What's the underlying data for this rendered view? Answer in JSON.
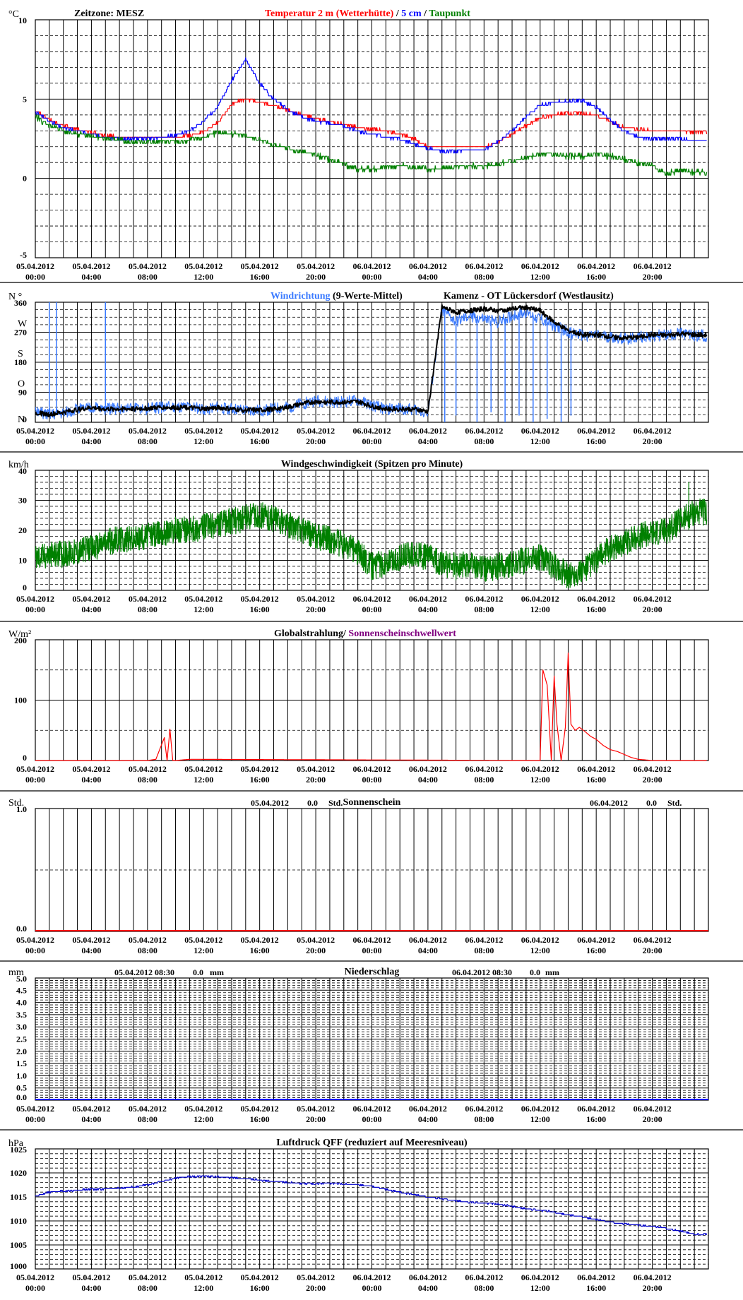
{
  "x_ticks": [
    {
      "date": "05.04.2012",
      "time": "00:00"
    },
    {
      "date": "05.04.2012",
      "time": "04:00"
    },
    {
      "date": "05.04.2012",
      "time": "08:00"
    },
    {
      "date": "05.04.2012",
      "time": "12:00"
    },
    {
      "date": "05.04.2012",
      "time": "16:00"
    },
    {
      "date": "05.04.2012",
      "time": "20:00"
    },
    {
      "date": "06.04.2012",
      "time": "00:00"
    },
    {
      "date": "06.04.2012",
      "time": "04:00"
    },
    {
      "date": "06.04.2012",
      "time": "08:00"
    },
    {
      "date": "06.04.2012",
      "time": "12:00"
    },
    {
      "date": "06.04.2012",
      "time": "16:00"
    },
    {
      "date": "06.04.2012",
      "time": "20:00"
    }
  ],
  "colors": {
    "red": "#ff0000",
    "blue": "#0000ff",
    "green": "#008000",
    "lightblue": "#3a7aff",
    "black": "#000000",
    "purple": "#800080",
    "navy": "#0000cc"
  },
  "chart_data": [
    {
      "type": "line",
      "id": "temperature",
      "unit": "°C",
      "timezone_label": "Zeitzone: MESZ",
      "title_parts": [
        {
          "text": "Temperatur 2 m (Wetterhütte)",
          "color": "#ff0000"
        },
        {
          "text": "  /  ",
          "color": "#000000"
        },
        {
          "text": "5 cm",
          "color": "#0000ff"
        },
        {
          "text": " / ",
          "color": "#000000"
        },
        {
          "text": "Taupunkt",
          "color": "#008000"
        }
      ],
      "ylim": [
        -5,
        10
      ],
      "y_ticks": [
        -5,
        0,
        5,
        10
      ],
      "x_hours": [
        0,
        1,
        2,
        3,
        4,
        5,
        6,
        7,
        8,
        9,
        10,
        11,
        12,
        13,
        14,
        15,
        16,
        17,
        18,
        19,
        20,
        21,
        22,
        23,
        24,
        25,
        26,
        27,
        28,
        29,
        30,
        31,
        32,
        33,
        34,
        35,
        36,
        37,
        38,
        39,
        40,
        41,
        42,
        43,
        44,
        45,
        46,
        47
      ],
      "series": [
        {
          "name": "Temperatur 2 m (Wetterhütte)",
          "color": "#ff0000",
          "values": [
            4.3,
            3.7,
            3.3,
            3.1,
            2.9,
            2.7,
            2.6,
            2.6,
            2.6,
            2.6,
            2.6,
            2.7,
            2.9,
            3.5,
            4.7,
            5.0,
            4.8,
            4.6,
            4.3,
            4.0,
            3.8,
            3.6,
            3.4,
            3.2,
            3.1,
            3.0,
            2.8,
            2.5,
            2.0,
            2.0,
            2.0,
            2.0,
            2.0,
            2.3,
            2.8,
            3.3,
            3.8,
            4.0,
            4.1,
            4.1,
            4.0,
            3.6,
            3.2,
            3.1,
            3.0,
            3.0,
            3.0,
            2.9
          ]
        },
        {
          "name": "5 cm",
          "color": "#0000ff",
          "values": [
            4.2,
            3.6,
            3.2,
            3.0,
            2.8,
            2.6,
            2.5,
            2.5,
            2.5,
            2.6,
            2.7,
            3.0,
            3.6,
            4.5,
            6.2,
            7.5,
            6.0,
            5.0,
            4.3,
            3.9,
            3.6,
            3.5,
            3.3,
            3.0,
            2.8,
            2.6,
            2.5,
            2.2,
            1.9,
            1.7,
            1.7,
            1.8,
            1.8,
            2.3,
            3.0,
            3.9,
            4.6,
            4.8,
            4.9,
            4.9,
            4.5,
            3.7,
            3.0,
            2.6,
            2.5,
            2.5,
            2.5,
            2.4
          ]
        },
        {
          "name": "Taupunkt",
          "color": "#008000",
          "values": [
            3.9,
            3.3,
            3.0,
            2.8,
            2.7,
            2.5,
            2.4,
            2.3,
            2.3,
            2.3,
            2.3,
            2.4,
            2.6,
            2.9,
            2.8,
            2.7,
            2.4,
            2.1,
            1.9,
            1.7,
            1.5,
            1.2,
            0.9,
            0.6,
            0.6,
            0.7,
            0.8,
            0.7,
            0.6,
            0.6,
            0.7,
            0.8,
            0.8,
            0.9,
            1.1,
            1.3,
            1.5,
            1.5,
            1.4,
            1.4,
            1.5,
            1.4,
            1.2,
            1.0,
            0.8,
            0.3,
            0.5,
            0.4
          ]
        }
      ]
    },
    {
      "type": "line",
      "id": "wind_direction",
      "unit": "N  °",
      "title_parts": [
        {
          "text": "Windrichtung",
          "color": "#3a7aff"
        },
        {
          "text": " (9-Werte-Mittel)",
          "color": "#000000"
        }
      ],
      "station": "Kamenz - OT Lückersdorf (Westlausitz)",
      "ylim": [
        0,
        360
      ],
      "y_ticks": [
        0,
        90,
        180,
        270,
        360
      ],
      "compass": [
        {
          "label": "N",
          "value": 0
        },
        {
          "label": "O",
          "value": 90
        },
        {
          "label": "S",
          "value": 180
        },
        {
          "label": "W",
          "value": 270
        },
        {
          "label": "N",
          "value": 360
        }
      ],
      "x_hours": [
        0,
        1,
        2,
        3,
        4,
        5,
        6,
        7,
        8,
        9,
        10,
        11,
        12,
        13,
        14,
        15,
        16,
        17,
        18,
        19,
        20,
        21,
        22,
        23,
        24,
        25,
        26,
        27,
        28,
        29,
        30,
        31,
        32,
        33,
        34,
        35,
        36,
        37,
        38,
        39,
        40,
        41,
        42,
        43,
        44,
        45,
        46,
        47
      ],
      "series": [
        {
          "name": "Windrichtung",
          "color": "#3a7aff",
          "values": [
            30,
            25,
            30,
            40,
            45,
            40,
            40,
            40,
            40,
            45,
            45,
            45,
            40,
            45,
            40,
            35,
            35,
            40,
            45,
            55,
            65,
            60,
            60,
            65,
            50,
            40,
            40,
            40,
            30,
            340,
            300,
            320,
            310,
            300,
            320,
            330,
            310,
            290,
            270,
            260,
            260,
            255,
            250,
            255,
            260,
            260,
            265,
            260
          ]
        },
        {
          "name": "9-Werte-Mittel",
          "color": "#000000",
          "values": [
            28,
            24,
            30,
            38,
            44,
            40,
            40,
            40,
            42,
            45,
            44,
            44,
            40,
            44,
            40,
            36,
            36,
            40,
            45,
            55,
            62,
            60,
            60,
            62,
            48,
            40,
            40,
            40,
            32,
            345,
            330,
            335,
            340,
            335,
            340,
            345,
            335,
            300,
            275,
            262,
            262,
            256,
            252,
            256,
            262,
            260,
            265,
            262
          ]
        }
      ],
      "spikes": [
        {
          "x": 1.0,
          "to": 360
        },
        {
          "x": 1.5,
          "to": 360
        },
        {
          "x": 5.0,
          "to": 360
        },
        {
          "x": 29.2,
          "to": 0
        },
        {
          "x": 30.0,
          "to": 20
        },
        {
          "x": 31.5,
          "to": 0
        },
        {
          "x": 32.5,
          "to": 30
        },
        {
          "x": 33.5,
          "to": 0
        },
        {
          "x": 34.5,
          "to": 20
        },
        {
          "x": 35.5,
          "to": 0
        },
        {
          "x": 36.5,
          "to": 10
        },
        {
          "x": 37.5,
          "to": 0
        },
        {
          "x": 38.2,
          "to": 20
        }
      ]
    },
    {
      "type": "line",
      "id": "wind_speed",
      "unit": "km/h",
      "title": "Windgeschwindigkeit (Spitzen pro Minute)",
      "ylim": [
        0,
        40
      ],
      "y_ticks": [
        0,
        10,
        20,
        30,
        40
      ],
      "x_hours": [
        0,
        1,
        2,
        3,
        4,
        5,
        6,
        7,
        8,
        9,
        10,
        11,
        12,
        13,
        14,
        15,
        16,
        17,
        18,
        19,
        20,
        21,
        22,
        23,
        24,
        25,
        26,
        27,
        28,
        29,
        30,
        31,
        32,
        33,
        34,
        35,
        36,
        37,
        38,
        39,
        40,
        41,
        42,
        43,
        44,
        45,
        46,
        47
      ],
      "series": [
        {
          "name": "Windgeschwindigkeit",
          "color": "#008000",
          "values": [
            11,
            12,
            12,
            13,
            14,
            16,
            17,
            17,
            18,
            19,
            20,
            20,
            21,
            22,
            23,
            24,
            25,
            24,
            22,
            20,
            18,
            17,
            15,
            13,
            8,
            9,
            11,
            12,
            11,
            9,
            8,
            9,
            7,
            8,
            9,
            10,
            11,
            8,
            5,
            6,
            10,
            14,
            16,
            18,
            19,
            20,
            23,
            26
          ]
        }
      ],
      "peak": {
        "x": 46.6,
        "value": 36
      }
    },
    {
      "type": "line",
      "id": "global_radiation",
      "unit": "W/m²",
      "title_parts": [
        {
          "text": "Globalstrahlung/ ",
          "color": "#000000"
        },
        {
          "text": "Sonnenscheinschwellwert",
          "color": "#800080"
        }
      ],
      "ylim": [
        0,
        200
      ],
      "y_ticks": [
        0,
        100,
        200
      ],
      "x_hours": [
        0,
        8,
        8.6,
        9.2,
        9.4,
        9.6,
        9.8,
        10,
        11,
        36,
        36.2,
        36.5,
        36.8,
        37.0,
        37.2,
        37.5,
        37.8,
        38.0,
        38.2,
        38.5,
        38.8,
        39.2,
        39.6,
        40.0,
        40.5,
        41.0,
        41.5,
        42.0,
        42.5,
        43.0,
        44.0,
        48
      ],
      "series": [
        {
          "name": "Globalstrahlung",
          "color": "#ff0000",
          "values": [
            0,
            0,
            2,
            38,
            0,
            52,
            0,
            0,
            2,
            0,
            150,
            125,
            0,
            140,
            60,
            0,
            55,
            178,
            60,
            50,
            55,
            48,
            40,
            35,
            25,
            18,
            15,
            10,
            5,
            2,
            0,
            0
          ]
        }
      ]
    },
    {
      "type": "bar",
      "id": "sunshine",
      "unit": "Std.",
      "title": "Sonnenschein",
      "summaries": [
        {
          "date": "05.04.2012",
          "value": "0.0",
          "unit": "Std."
        },
        {
          "date": "06.04.2012",
          "value": "0.0",
          "unit": "Std."
        }
      ],
      "ylim": [
        0,
        1
      ],
      "y_ticks": [
        "0.0",
        "1.0"
      ],
      "series": [
        {
          "name": "Sonnenschein",
          "color": "#ff0000",
          "values": [
            0
          ]
        }
      ]
    },
    {
      "type": "bar",
      "id": "precipitation",
      "unit": "mm",
      "title": "Niederschlag",
      "summaries": [
        {
          "date": "05.04.2012 08:30",
          "value": "0.0",
          "unit": "mm"
        },
        {
          "date": "06.04.2012 08:30",
          "value": "0.0",
          "unit": "mm"
        }
      ],
      "ylim": [
        0,
        5
      ],
      "y_ticks": [
        "0.0",
        "0.5",
        "1.0",
        "1.5",
        "2.0",
        "2.5",
        "3.0",
        "3.5",
        "4.0",
        "4.5",
        "5.0"
      ],
      "series": [
        {
          "name": "Niederschlag",
          "color": "#0000ff",
          "values": [
            0
          ]
        }
      ]
    },
    {
      "type": "line",
      "id": "pressure",
      "unit": "hPa",
      "title": "Luftdruck QFF (reduziert auf Meeresniveau)",
      "ylim": [
        1000,
        1025
      ],
      "y_ticks": [
        1000,
        1005,
        1010,
        1015,
        1020,
        1025
      ],
      "x_hours": [
        0,
        1,
        2,
        3,
        4,
        5,
        6,
        7,
        8,
        9,
        10,
        11,
        12,
        13,
        14,
        15,
        16,
        17,
        18,
        19,
        20,
        21,
        22,
        23,
        24,
        25,
        26,
        27,
        28,
        29,
        30,
        31,
        32,
        33,
        34,
        35,
        36,
        37,
        38,
        39,
        40,
        41,
        42,
        43,
        44,
        45,
        46,
        47
      ],
      "series": [
        {
          "name": "Luftdruck",
          "color": "#0000cc",
          "values": [
            1015.2,
            1016.0,
            1016.2,
            1016.4,
            1016.6,
            1016.6,
            1016.8,
            1017.1,
            1017.5,
            1018.2,
            1018.9,
            1019.2,
            1019.3,
            1019.2,
            1019.0,
            1018.8,
            1018.5,
            1018.2,
            1018.0,
            1017.8,
            1017.8,
            1017.8,
            1017.7,
            1017.5,
            1017.2,
            1016.6,
            1016.0,
            1015.5,
            1015.0,
            1014.6,
            1014.2,
            1013.9,
            1013.7,
            1013.5,
            1013.0,
            1012.5,
            1012.2,
            1011.8,
            1011.3,
            1010.8,
            1010.3,
            1009.8,
            1009.4,
            1009.1,
            1008.9,
            1008.5,
            1007.9,
            1007.2
          ]
        }
      ]
    }
  ]
}
